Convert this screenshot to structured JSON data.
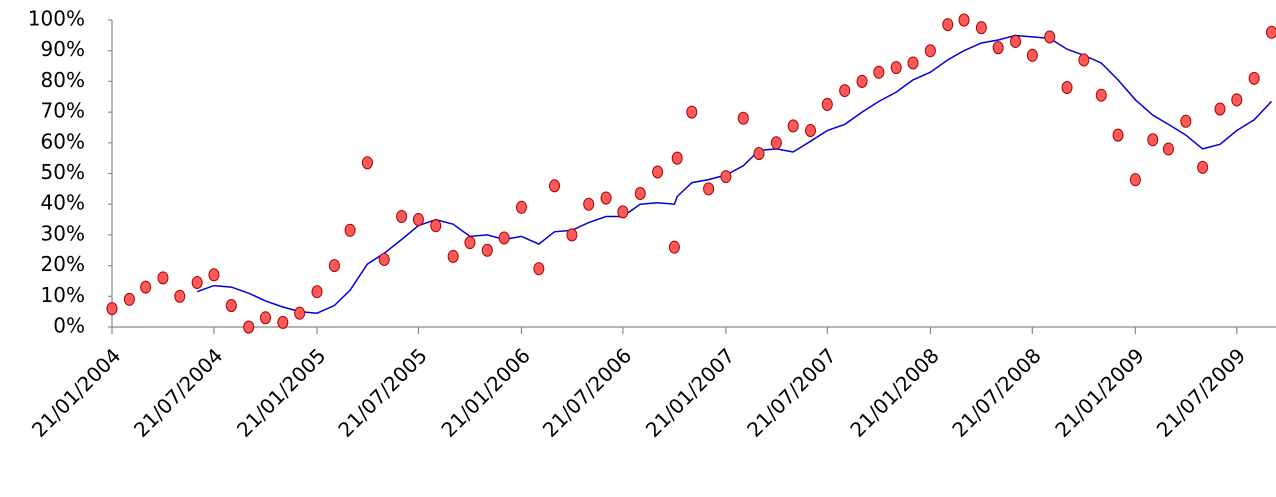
{
  "chart_data": {
    "type": "scatter",
    "x": [
      "21/01/2004",
      "21/02/2004",
      "21/03/2004",
      "21/04/2004",
      "21/05/2004",
      "21/06/2004",
      "21/07/2004",
      "21/08/2004",
      "21/09/2004",
      "21/10/2004",
      "21/11/2004",
      "21/12/2004",
      "21/01/2005",
      "21/02/2005",
      "21/03/2005",
      "21/04/2005",
      "21/05/2005",
      "21/06/2005",
      "21/07/2005",
      "21/08/2005",
      "21/09/2005",
      "21/10/2005",
      "21/11/2005",
      "21/12/2005",
      "21/01/2006",
      "21/02/2006",
      "21/03/2006",
      "21/04/2006",
      "21/05/2006",
      "21/06/2006",
      "21/07/2006",
      "21/08/2006",
      "21/09/2006",
      "21/10/2006",
      "26/10/2006",
      "21/11/2006",
      "21/12/2006",
      "21/01/2007",
      "21/02/2007",
      "21/03/2007",
      "21/04/2007",
      "21/05/2007",
      "21/06/2007",
      "21/07/2007",
      "21/08/2007",
      "21/09/2007",
      "21/10/2007",
      "21/11/2007",
      "21/12/2007",
      "21/01/2008",
      "21/02/2008",
      "21/03/2008",
      "21/04/2008",
      "21/05/2008",
      "21/06/2008",
      "21/07/2008",
      "21/08/2008",
      "21/09/2008",
      "21/10/2008",
      "21/11/2008",
      "21/12/2008",
      "21/01/2009",
      "21/02/2009",
      "21/03/2009",
      "21/04/2009",
      "21/05/2009",
      "21/06/2009",
      "21/07/2009",
      "21/08/2009",
      "21/09/2009"
    ],
    "series": [
      {
        "type": "scatter",
        "color": "#ff5a5a",
        "stroke": "#b00000",
        "values": [
          6,
          9,
          13,
          16,
          10,
          14.5,
          17,
          7,
          0,
          3,
          1.5,
          4.5,
          11.5,
          20,
          31.5,
          53.5,
          22,
          36,
          35,
          33,
          23,
          27.5,
          25,
          29,
          39,
          19,
          46,
          30,
          40,
          42,
          37.5,
          43.5,
          50.5,
          26,
          55,
          70,
          45,
          49,
          68,
          56.5,
          60,
          65.5,
          64,
          72.5,
          77,
          80,
          83,
          84.5,
          86,
          90,
          98.5,
          100,
          97.5,
          91,
          93,
          88.5,
          94.5,
          78,
          87,
          75.5,
          62.5,
          48,
          61,
          58,
          67,
          52,
          71,
          74,
          81,
          96
        ]
      },
      {
        "type": "line",
        "color": "#0000dd",
        "values": [
          null,
          null,
          null,
          null,
          null,
          11.5,
          13.5,
          13,
          11,
          8.5,
          6.5,
          5,
          4.5,
          7,
          12,
          20.5,
          24,
          28.5,
          33,
          35,
          33.5,
          29.5,
          30,
          28.5,
          29.5,
          27,
          31,
          31.5,
          34,
          36,
          36,
          40,
          40.5,
          40,
          42.5,
          47,
          48,
          49.5,
          52.5,
          57.5,
          58,
          57,
          60.5,
          64,
          66,
          70,
          73.5,
          76.5,
          80.5,
          83,
          87,
          90,
          92.5,
          93.5,
          95,
          94.5,
          94,
          90.5,
          88.5,
          86,
          80.5,
          74,
          69,
          66,
          62.5,
          58,
          59.5,
          64,
          67.5,
          73.5
        ]
      }
    ],
    "xlim": [
      "21/01/2004",
      "29/09/2009"
    ],
    "xticks": [
      "21/01/2004",
      "21/07/2004",
      "21/01/2005",
      "21/07/2005",
      "21/01/2006",
      "21/07/2006",
      "21/01/2007",
      "21/07/2007",
      "21/01/2008",
      "21/07/2008",
      "21/01/2009",
      "21/07/2009"
    ],
    "ylim": [
      0,
      100
    ],
    "yticks": [
      {
        "value": 0,
        "label": "0%"
      },
      {
        "value": 10,
        "label": "10%"
      },
      {
        "value": 20,
        "label": "20%"
      },
      {
        "value": 30,
        "label": "30%"
      },
      {
        "value": 40,
        "label": "40%"
      },
      {
        "value": 50,
        "label": "50%"
      },
      {
        "value": 60,
        "label": "60%"
      },
      {
        "value": 70,
        "label": "70%"
      },
      {
        "value": 80,
        "label": "80%"
      },
      {
        "value": 90,
        "label": "90%"
      },
      {
        "value": 100,
        "label": "100%"
      }
    ],
    "grid": false
  }
}
